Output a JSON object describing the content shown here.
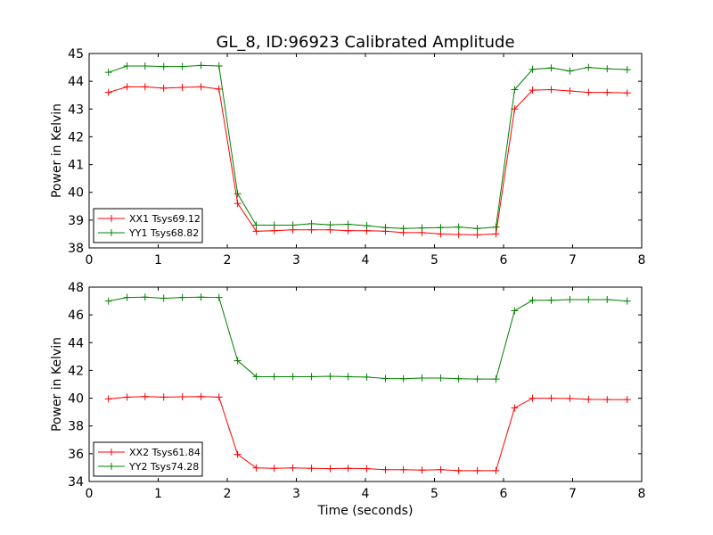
{
  "figure": {
    "title": "GL_8, ID:96923 Calibrated Amplitude"
  },
  "chart_data": [
    {
      "type": "line",
      "title": "GL_8, ID:96923 Calibrated Amplitude",
      "xlabel": "",
      "ylabel": "Power in Kelvin",
      "xlim": [
        0,
        8
      ],
      "ylim": [
        38,
        45
      ],
      "xticks": [
        0,
        1,
        2,
        3,
        4,
        5,
        6,
        7,
        8
      ],
      "yticks": [
        38,
        39,
        40,
        41,
        42,
        43,
        44,
        45
      ],
      "grid": false,
      "legend_position": "lower-left",
      "x": [
        0.28,
        0.55,
        0.81,
        1.08,
        1.35,
        1.62,
        1.88,
        2.15,
        2.42,
        2.68,
        2.95,
        3.22,
        3.49,
        3.75,
        4.02,
        4.29,
        4.55,
        4.82,
        5.09,
        5.35,
        5.62,
        5.89,
        6.16,
        6.42,
        6.69,
        6.96,
        7.23,
        7.5,
        7.79
      ],
      "series": [
        {
          "name": "XX1 Tsys69.12",
          "color": "#ff0000",
          "values": [
            43.6,
            43.8,
            43.8,
            43.75,
            43.78,
            43.8,
            43.72,
            39.6,
            38.6,
            38.62,
            38.65,
            38.65,
            38.65,
            38.62,
            38.62,
            38.6,
            38.55,
            38.55,
            38.5,
            38.48,
            38.47,
            38.5,
            43.0,
            43.68,
            43.7,
            43.65,
            43.6,
            43.6,
            43.58
          ]
        },
        {
          "name": "YY1 Tsys68.82",
          "color": "#008000",
          "values": [
            44.32,
            44.55,
            44.55,
            44.53,
            44.53,
            44.57,
            44.55,
            39.95,
            38.82,
            38.82,
            38.82,
            38.87,
            38.83,
            38.85,
            38.8,
            38.73,
            38.7,
            38.72,
            38.73,
            38.75,
            38.7,
            38.75,
            43.7,
            44.43,
            44.48,
            44.37,
            44.5,
            44.45,
            44.42
          ]
        }
      ]
    },
    {
      "type": "line",
      "title": "",
      "xlabel": "Time (seconds)",
      "ylabel": "Power in Kelvin",
      "xlim": [
        0,
        8
      ],
      "ylim": [
        34,
        48
      ],
      "xticks": [
        0,
        1,
        2,
        3,
        4,
        5,
        6,
        7,
        8
      ],
      "yticks": [
        34,
        36,
        38,
        40,
        42,
        44,
        46,
        48
      ],
      "grid": false,
      "legend_position": "lower-left",
      "x": [
        0.28,
        0.55,
        0.81,
        1.08,
        1.35,
        1.62,
        1.88,
        2.15,
        2.42,
        2.68,
        2.95,
        3.22,
        3.49,
        3.75,
        4.02,
        4.29,
        4.55,
        4.82,
        5.09,
        5.35,
        5.62,
        5.89,
        6.16,
        6.42,
        6.69,
        6.96,
        7.23,
        7.5,
        7.79
      ],
      "series": [
        {
          "name": "XX2 Tsys61.84",
          "color": "#ff0000",
          "values": [
            39.95,
            40.08,
            40.12,
            40.08,
            40.1,
            40.12,
            40.08,
            35.95,
            34.98,
            34.95,
            34.98,
            34.95,
            34.92,
            34.95,
            34.92,
            34.85,
            34.85,
            34.82,
            34.85,
            34.78,
            34.78,
            34.78,
            39.3,
            40.0,
            40.0,
            39.98,
            39.92,
            39.9,
            39.9
          ]
        },
        {
          "name": "YY2 Tsys74.28",
          "color": "#008000",
          "values": [
            47.0,
            47.25,
            47.28,
            47.2,
            47.25,
            47.28,
            47.25,
            42.7,
            41.55,
            41.55,
            41.55,
            41.55,
            41.58,
            41.55,
            41.52,
            41.42,
            41.4,
            41.45,
            41.45,
            41.4,
            41.38,
            41.38,
            46.3,
            47.05,
            47.05,
            47.1,
            47.1,
            47.1,
            47.0
          ]
        }
      ]
    }
  ]
}
